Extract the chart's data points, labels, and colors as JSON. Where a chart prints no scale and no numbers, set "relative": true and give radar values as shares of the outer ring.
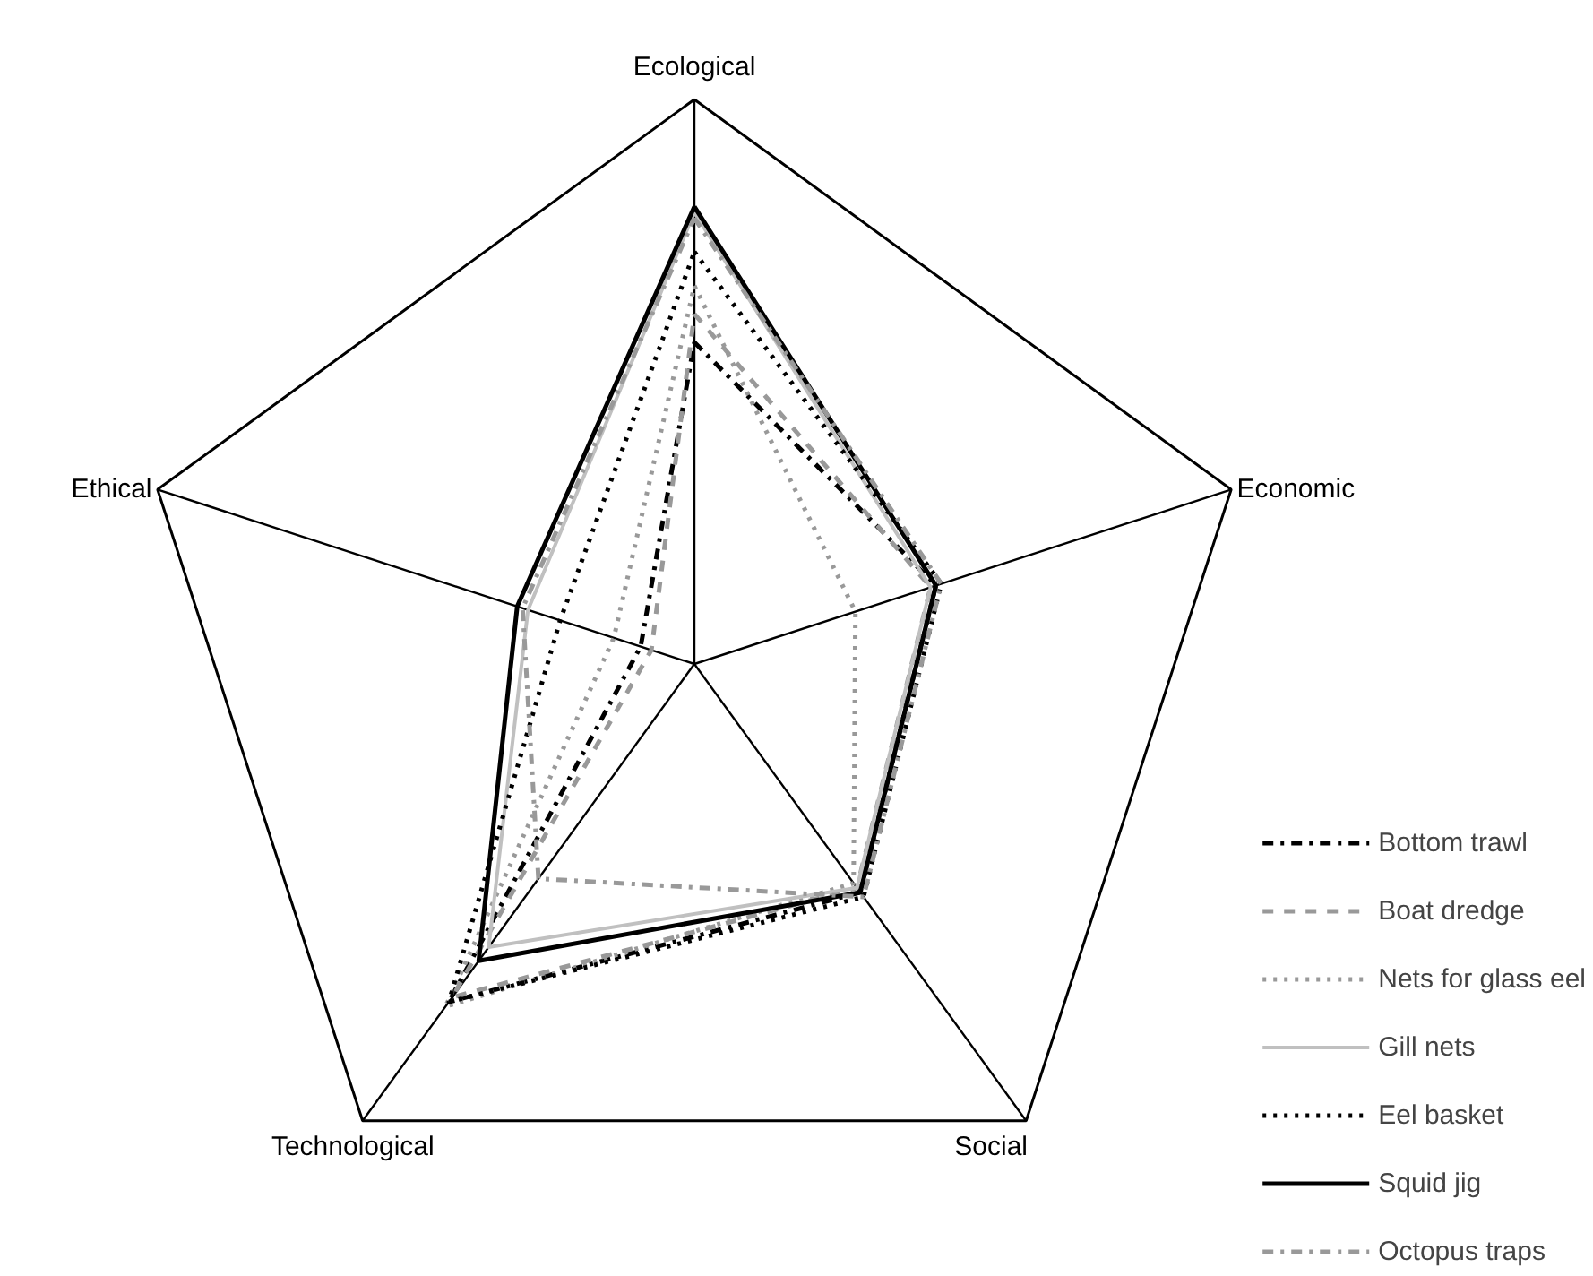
{
  "chart_data": {
    "type": "radar",
    "relative": true,
    "categories": [
      "Ecological",
      "Economic",
      "Social",
      "Technological",
      "Ethical"
    ],
    "legend": "bottom right",
    "marker": "none",
    "series": [
      {
        "name": "Bottom trawl",
        "color": "#000000",
        "line_style": "dashdot",
        "values": [
          0.57,
          0.45,
          0.5,
          0.74,
          0.1
        ]
      },
      {
        "name": "Boat dredge",
        "color": "#999999",
        "line_style": "dashed",
        "values": [
          0.62,
          0.44,
          0.49,
          0.73,
          0.08
        ]
      },
      {
        "name": "Nets for glass eel",
        "color": "#999999",
        "line_style": "dotted",
        "values": [
          0.67,
          0.3,
          0.48,
          0.75,
          0.15
        ]
      },
      {
        "name": "Gill nets",
        "color": "#c0c0c0",
        "line_style": "solid",
        "values": [
          0.8,
          0.44,
          0.49,
          0.62,
          0.31
        ]
      },
      {
        "name": "Eel basket",
        "color": "#000000",
        "line_style": "dotted",
        "values": [
          0.73,
          0.46,
          0.51,
          0.74,
          0.25
        ]
      },
      {
        "name": "Squid jig",
        "color": "#000000",
        "line_style": "solid",
        "values": [
          0.81,
          0.45,
          0.5,
          0.65,
          0.33
        ]
      },
      {
        "name": "Octopus traps",
        "color": "#999999",
        "line_style": "dashdot",
        "values": [
          0.79,
          0.46,
          0.51,
          0.47,
          0.32
        ]
      }
    ]
  }
}
